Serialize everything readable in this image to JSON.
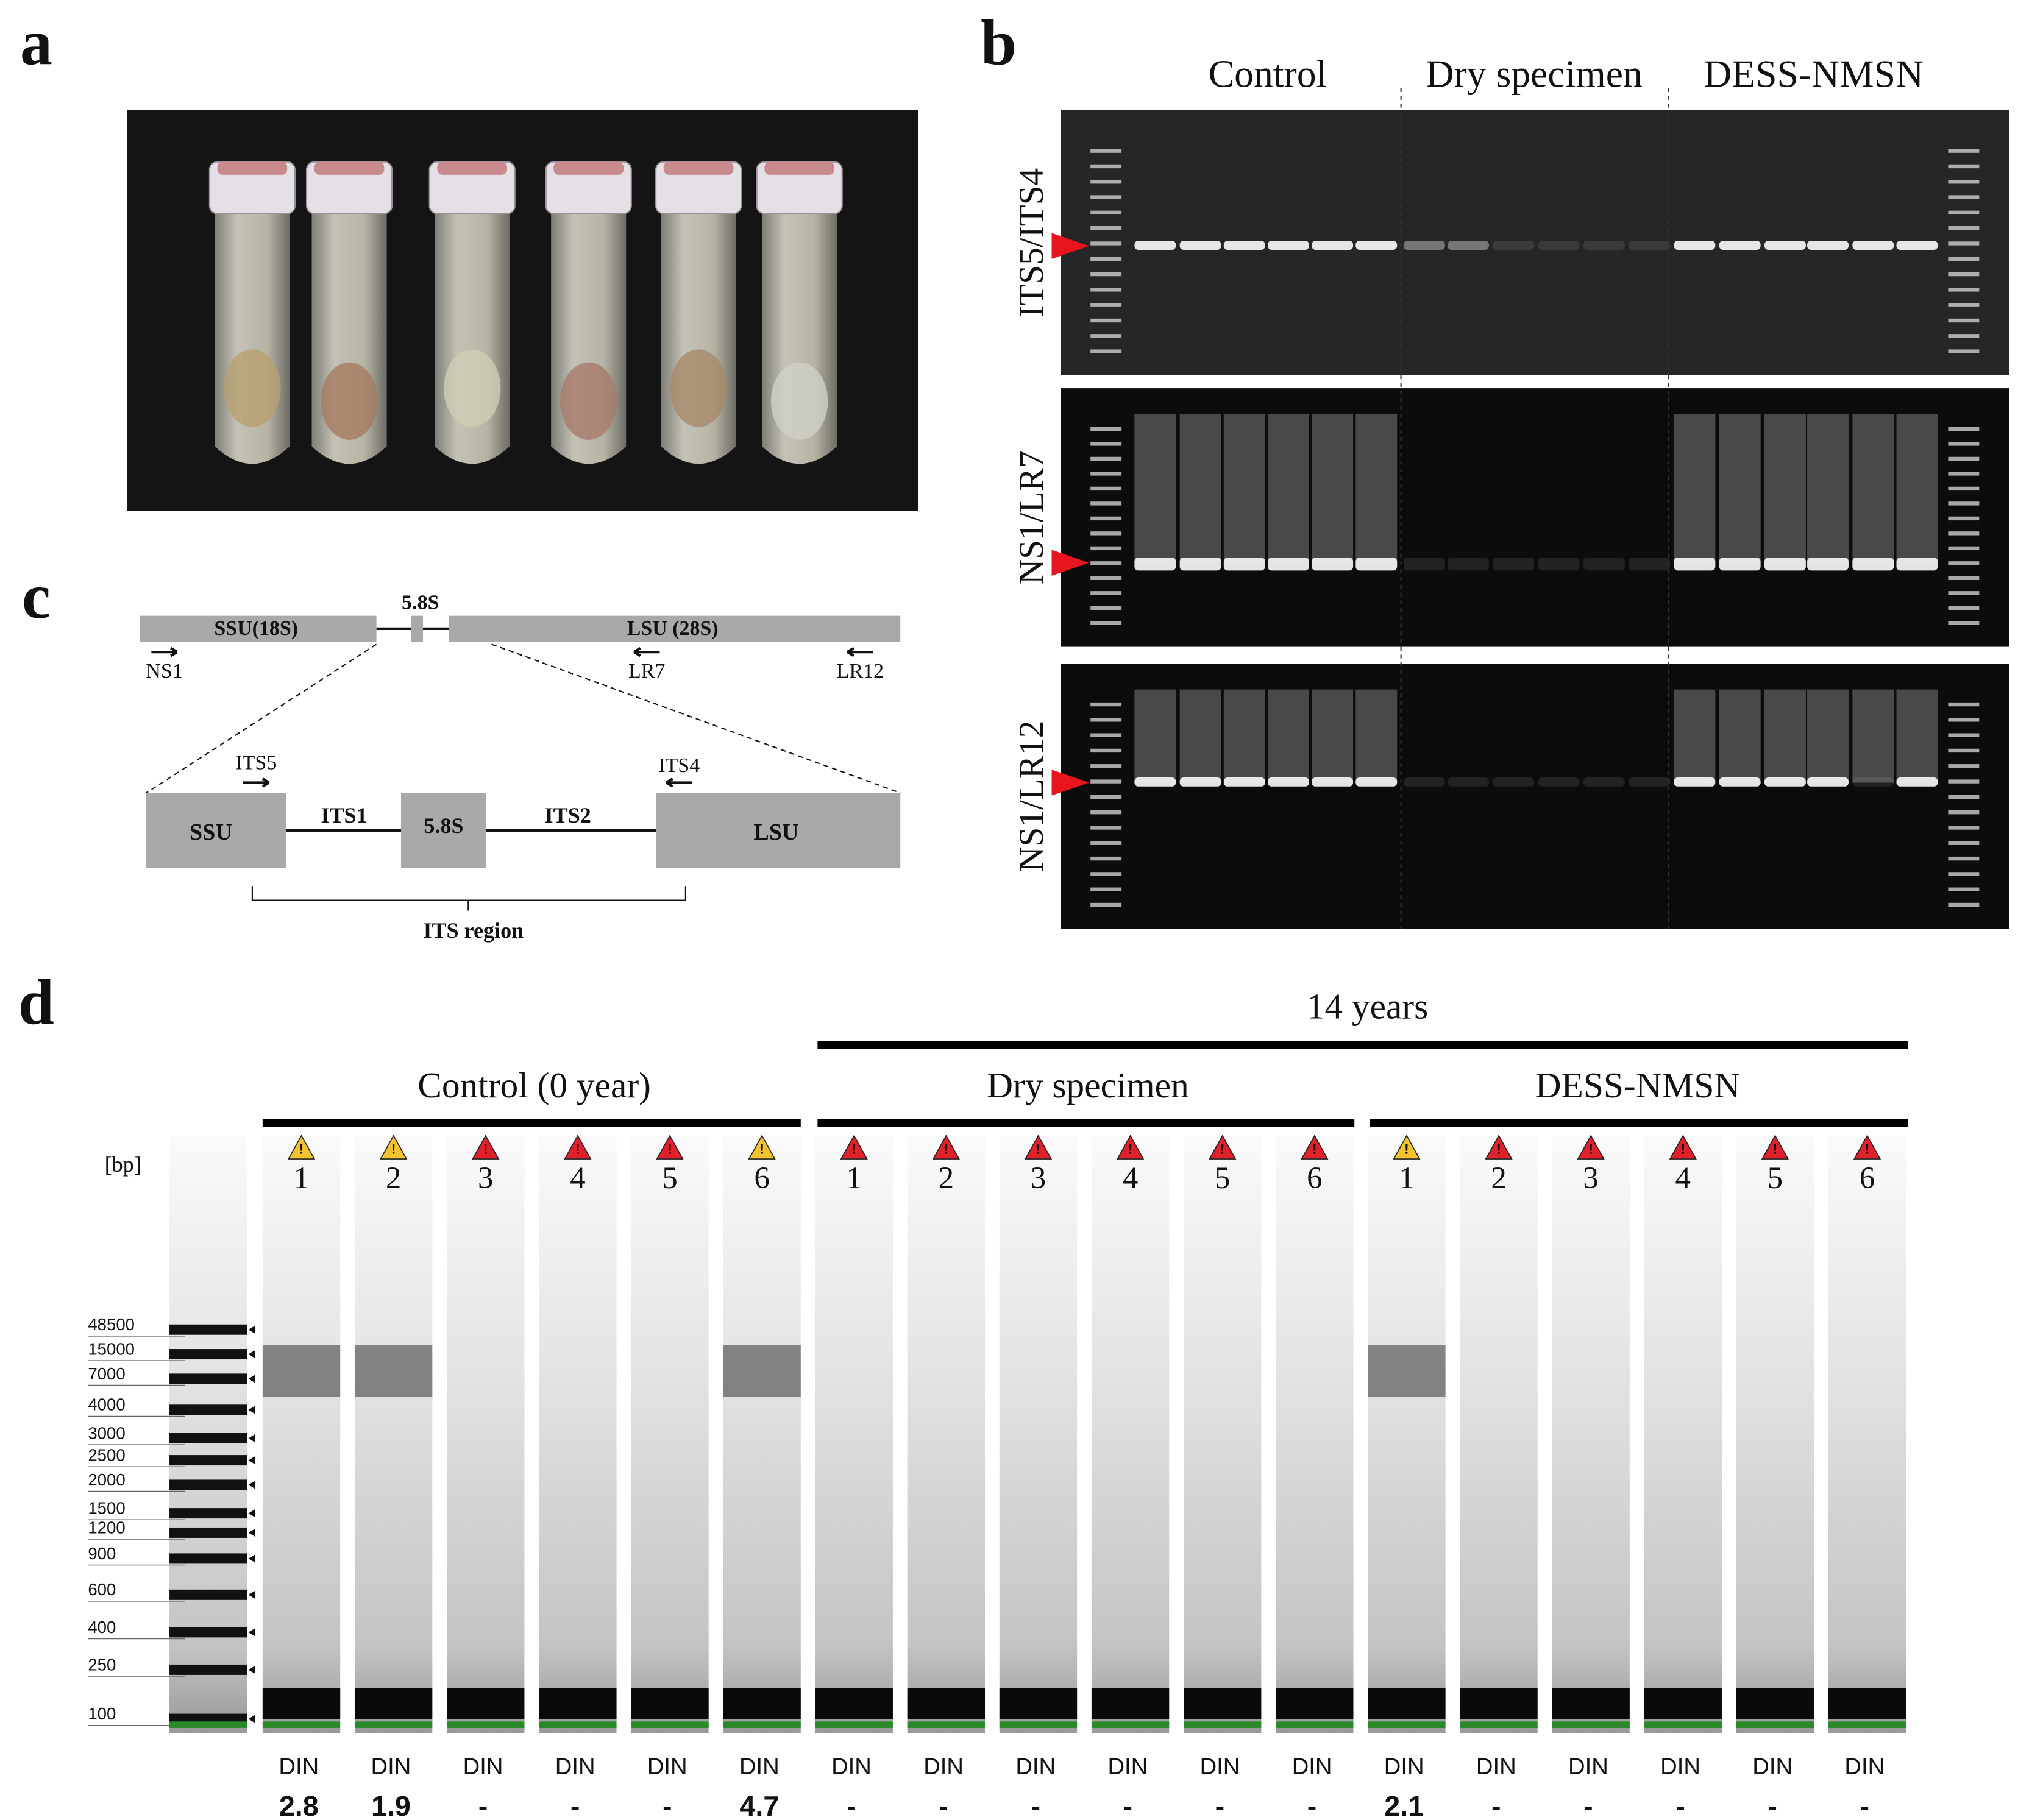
{
  "panels": [
    "a",
    "b",
    "c",
    "d"
  ],
  "gel": {
    "groups": [
      "Control",
      "Dry specimen",
      "DESS-NMSN"
    ],
    "primers": [
      "ITS5/ITS4",
      "NS1/LR7",
      "NS1/LR12"
    ]
  },
  "diagram": {
    "top": {
      "ssu": "SSU(18S)",
      "s58": "5.8S",
      "lsu": "LSU (28S)",
      "primers": [
        "NS1",
        "LR7",
        "LR12"
      ]
    },
    "detail": {
      "ssu": "SSU",
      "its1": "ITS1",
      "s58": "5.8S",
      "its2": "ITS2",
      "lsu": "LSU",
      "primers": [
        "ITS5",
        "ITS4"
      ],
      "region": "ITS region"
    }
  },
  "tapestation": {
    "span": "14 years",
    "groups": [
      "Control (0 year)",
      "Dry specimen",
      "DESS-NMSN"
    ],
    "unit": "[bp]",
    "ladder": [
      48500,
      15000,
      7000,
      4000,
      3000,
      2500,
      2000,
      1500,
      1200,
      900,
      600,
      400,
      250,
      100
    ],
    "din_label": "DIN",
    "lanes": [
      {
        "number": "1",
        "flag": "#f2c230",
        "din": "2.8"
      },
      {
        "number": "2",
        "flag": "#f2c230",
        "din": "1.9"
      },
      {
        "number": "3",
        "flag": "#e0202a",
        "din": "-"
      },
      {
        "number": "4",
        "flag": "#e0202a",
        "din": "-"
      },
      {
        "number": "5",
        "flag": "#e0202a",
        "din": "-"
      },
      {
        "number": "6",
        "flag": "#f2c230",
        "din": "4.7"
      },
      {
        "number": "1",
        "flag": "#e0202a",
        "din": "-"
      },
      {
        "number": "2",
        "flag": "#e0202a",
        "din": "-"
      },
      {
        "number": "3",
        "flag": "#e0202a",
        "din": "-"
      },
      {
        "number": "4",
        "flag": "#e0202a",
        "din": "-"
      },
      {
        "number": "5",
        "flag": "#e0202a",
        "din": "-"
      },
      {
        "number": "6",
        "flag": "#e0202a",
        "din": "-"
      },
      {
        "number": "1",
        "flag": "#f2c230",
        "din": "2.1"
      },
      {
        "number": "2",
        "flag": "#e0202a",
        "din": "-"
      },
      {
        "number": "3",
        "flag": "#e0202a",
        "din": "-"
      },
      {
        "number": "4",
        "flag": "#e0202a",
        "din": "-"
      },
      {
        "number": "5",
        "flag": "#e0202a",
        "din": "-"
      },
      {
        "number": "6",
        "flag": "#e0202a",
        "din": "-"
      }
    ]
  }
}
